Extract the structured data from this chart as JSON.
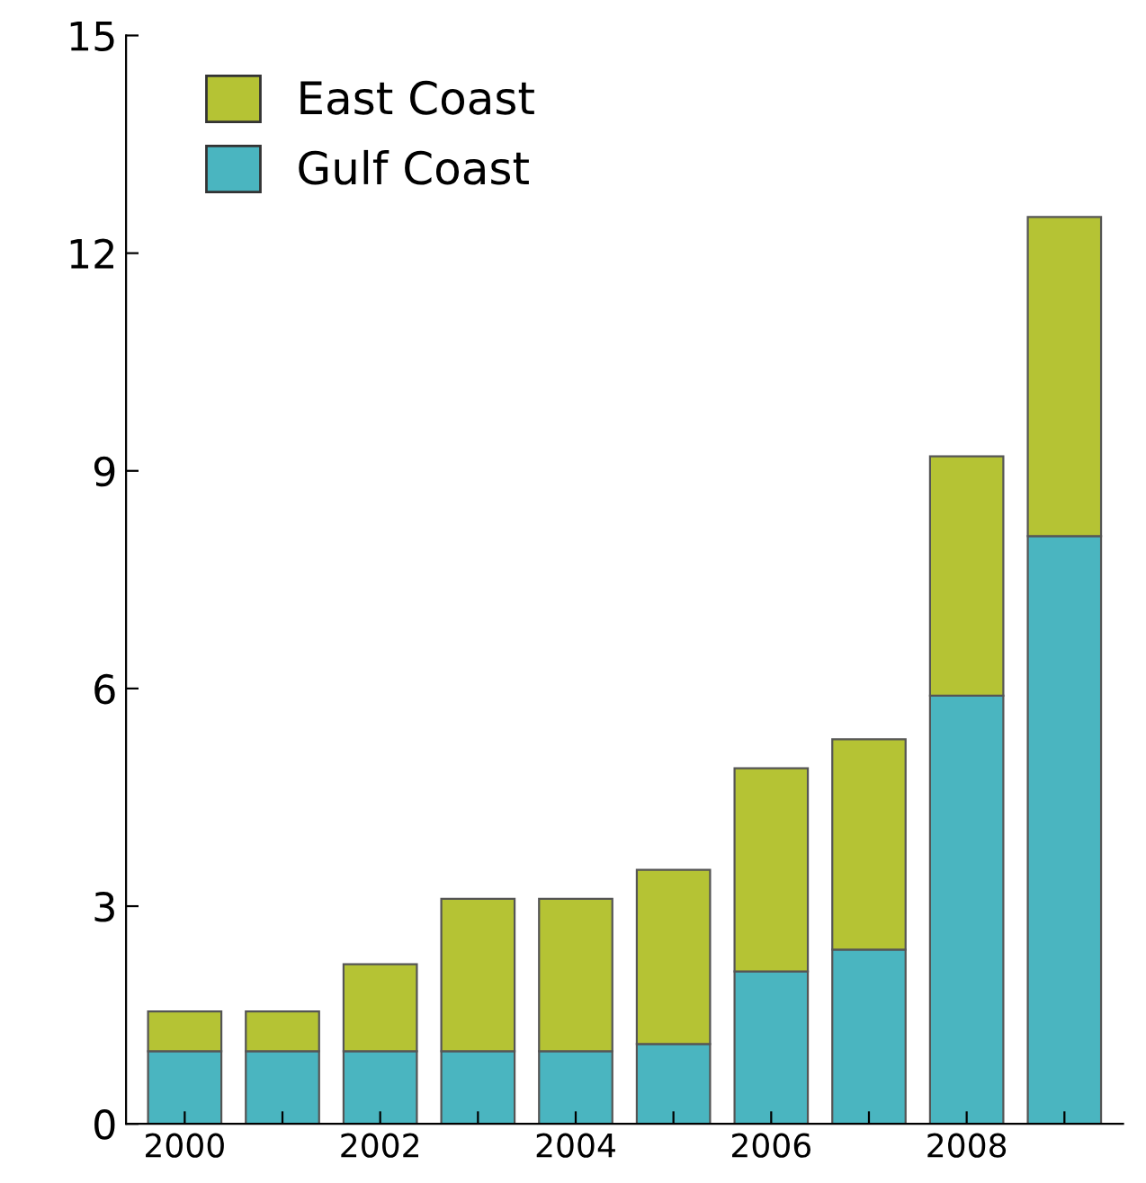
{
  "chart_data": {
    "type": "bar",
    "stacked": true,
    "categories": [
      "2000",
      null,
      "2002",
      null,
      "2004",
      null,
      "2006",
      null,
      "2008",
      null
    ],
    "series": [
      {
        "name": "Gulf Coast",
        "color": "#4ab5c0",
        "values": [
          1.0,
          1.0,
          1.0,
          1.0,
          1.0,
          1.1,
          2.1,
          2.4,
          5.9,
          8.1
        ]
      },
      {
        "name": "East Coast",
        "color": "#b5c334",
        "values": [
          0.55,
          0.55,
          1.2,
          2.1,
          2.1,
          2.4,
          2.8,
          2.9,
          3.3,
          4.4
        ]
      }
    ],
    "ylim": [
      0,
      15
    ],
    "yticks": [
      0,
      3,
      6,
      9,
      12,
      15
    ],
    "grid": false,
    "legend": "top left"
  }
}
